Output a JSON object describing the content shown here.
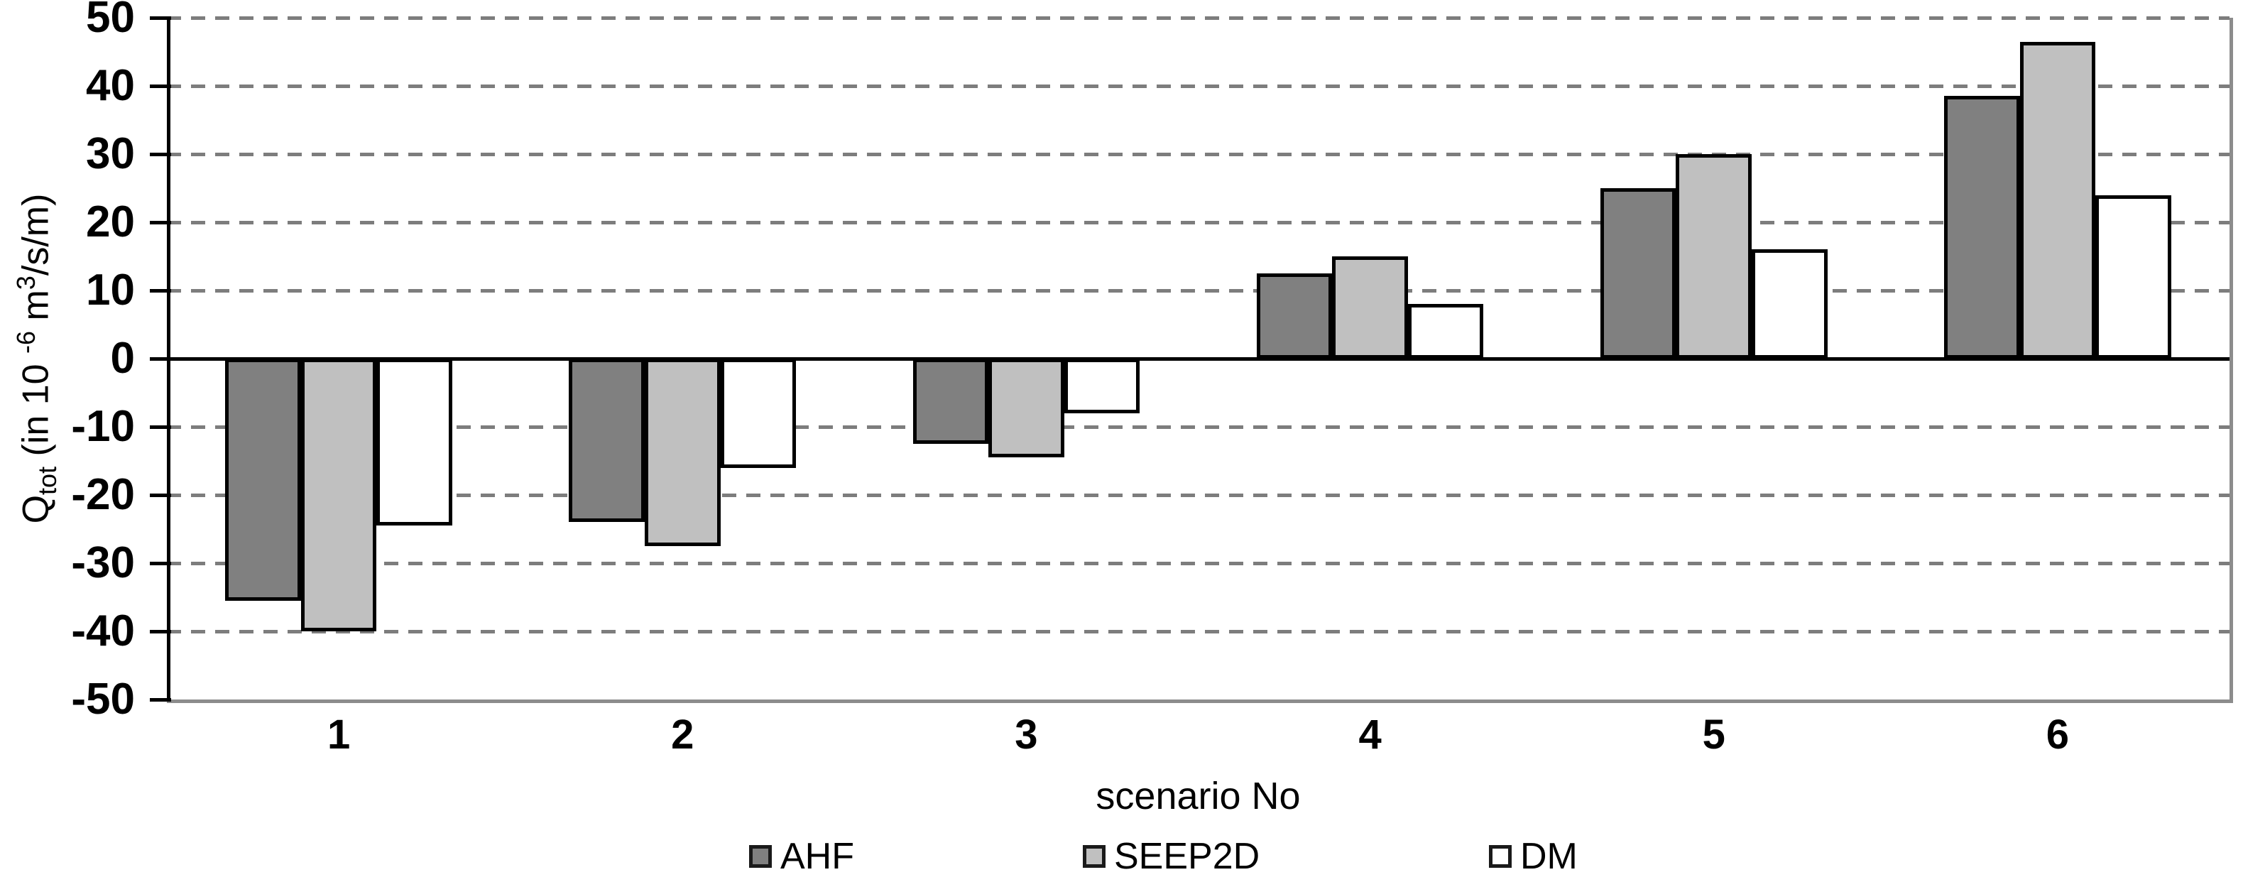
{
  "chart_data": {
    "type": "bar",
    "title": "",
    "xlabel": "scenario No",
    "ylabel": "Qtot (in 10 -6 m3/s/m)",
    "ylabel_segments": [
      {
        "text": "Q"
      },
      {
        "text": "tot",
        "script": "sub"
      },
      {
        "text": " (in  10 "
      },
      {
        "text": "-6",
        "script": "sup"
      },
      {
        "text": " m"
      },
      {
        "text": "3",
        "script": "sup"
      },
      {
        "text": "/s/m)"
      }
    ],
    "categories": [
      "1",
      "2",
      "3",
      "4",
      "5",
      "6"
    ],
    "series": [
      {
        "name": "AHF",
        "color": "#808080",
        "values": [
          -35.5,
          -24,
          -12.5,
          12.5,
          25,
          38.5
        ]
      },
      {
        "name": "SEEP2D",
        "color": "#c0c0c0",
        "values": [
          -40,
          -27.5,
          -14.5,
          15,
          30,
          46.5
        ]
      },
      {
        "name": "DM",
        "color": "#ffffff",
        "values": [
          -24.5,
          -16,
          -8,
          8,
          16,
          24
        ]
      }
    ],
    "ylim": [
      -50,
      50
    ],
    "yticks": [
      50,
      40,
      30,
      20,
      10,
      0,
      -10,
      -20,
      -30,
      -40,
      -50
    ],
    "grid": "horizontal-dashed",
    "legend_position": "bottom",
    "legend_labels": [
      "AHF",
      "SEEP2D",
      "DM"
    ]
  },
  "style": {
    "bar_border_color": "#000000",
    "gridline_color": "#7d7d7d",
    "axis_color": "#000000",
    "plot_border_color": "#8c8c8c",
    "text_color": "#000000",
    "background": "#ffffff"
  }
}
